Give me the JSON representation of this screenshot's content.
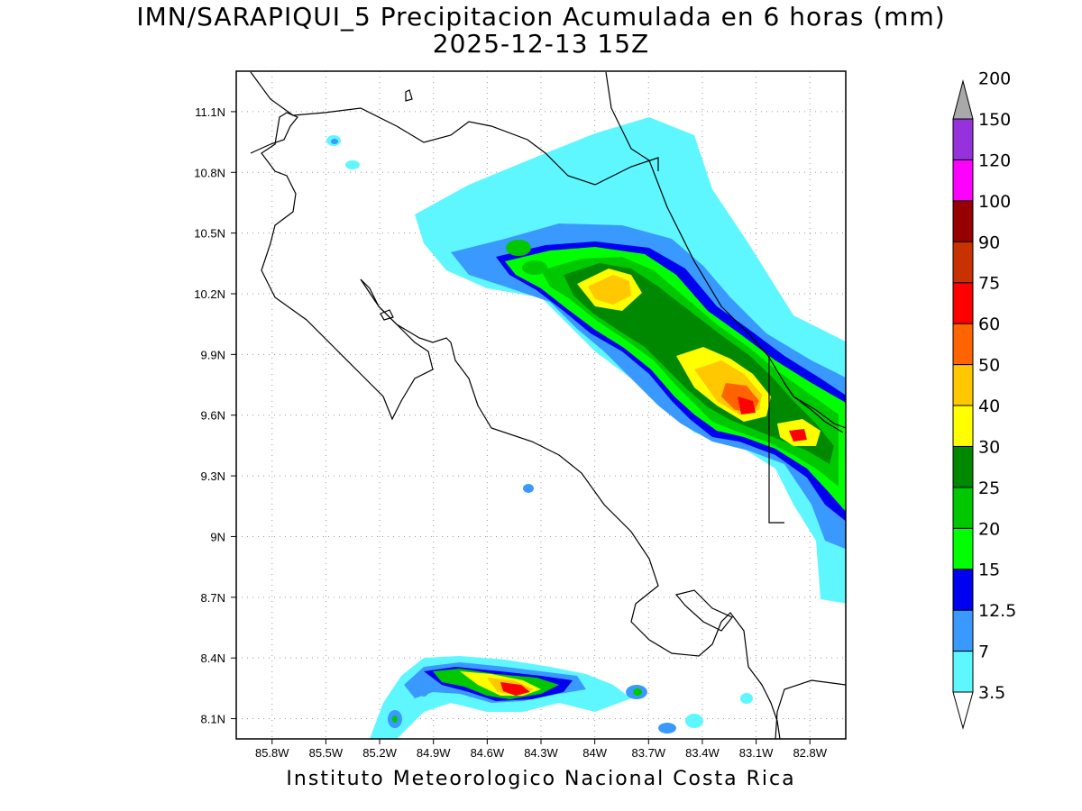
{
  "title": "IMN/SARAPIQUI_5 Precipitacion Acumulada en 6 horas (mm)",
  "subtitle": "2025-12-13 15Z",
  "credit": "Instituto Meteorologico Nacional Costa Rica",
  "map": {
    "lon_range": [
      -86.0,
      -82.6
    ],
    "lat_range": [
      8.0,
      11.3
    ],
    "lon_ticks": [
      {
        "value": -85.8,
        "label": "85.8W"
      },
      {
        "value": -85.5,
        "label": "85.5W"
      },
      {
        "value": -85.2,
        "label": "85.2W"
      },
      {
        "value": -84.9,
        "label": "84.9W"
      },
      {
        "value": -84.6,
        "label": "84.6W"
      },
      {
        "value": -84.3,
        "label": "84.3W"
      },
      {
        "value": -84.0,
        "label": "84W"
      },
      {
        "value": -83.7,
        "label": "83.7W"
      },
      {
        "value": -83.4,
        "label": "83.4W"
      },
      {
        "value": -83.1,
        "label": "83.1W"
      },
      {
        "value": -82.8,
        "label": "82.8W"
      }
    ],
    "lat_ticks": [
      {
        "value": 8.1,
        "label": "8.1N"
      },
      {
        "value": 8.4,
        "label": "8.4N"
      },
      {
        "value": 8.7,
        "label": "8.7N"
      },
      {
        "value": 9.0,
        "label": "9N"
      },
      {
        "value": 9.3,
        "label": "9.3N"
      },
      {
        "value": 9.6,
        "label": "9.6N"
      },
      {
        "value": 9.9,
        "label": "9.9N"
      },
      {
        "value": 10.2,
        "label": "10.2N"
      },
      {
        "value": 10.5,
        "label": "10.5N"
      },
      {
        "value": 10.8,
        "label": "10.8N"
      },
      {
        "value": 11.1,
        "label": "11.1N"
      }
    ],
    "grid": "dotted",
    "colorbar": {
      "unit": "mm",
      "levels": [
        {
          "label": "3.5",
          "color": "#5ff7ff"
        },
        {
          "label": "7",
          "color": "#3a99ff"
        },
        {
          "label": "12.5",
          "color": "#0000f0"
        },
        {
          "label": "15",
          "color": "#00ff00"
        },
        {
          "label": "20",
          "color": "#00c800"
        },
        {
          "label": "25",
          "color": "#008800"
        },
        {
          "label": "30",
          "color": "#ffff00"
        },
        {
          "label": "40",
          "color": "#ffc800"
        },
        {
          "label": "50",
          "color": "#ff6400"
        },
        {
          "label": "60",
          "color": "#ff0000"
        },
        {
          "label": "75",
          "color": "#c83200"
        },
        {
          "label": "90",
          "color": "#960000"
        },
        {
          "label": "100",
          "color": "#ff00ff"
        },
        {
          "label": "120",
          "color": "#9632dc"
        },
        {
          "label": "150",
          "color": "#f5f5f5"
        },
        {
          "label": "200",
          "color": "#a9a9a9"
        }
      ]
    }
  }
}
